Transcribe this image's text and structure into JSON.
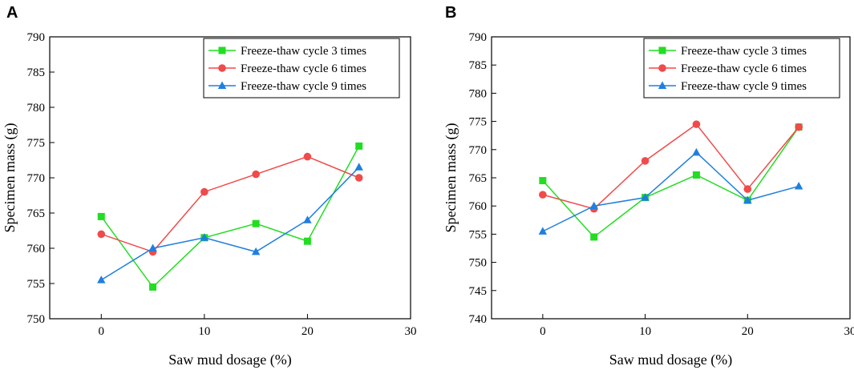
{
  "chart_data": [
    {
      "type": "line",
      "panel_label": "A",
      "xlabel": "Saw mud dosage (%)",
      "ylabel": "Specimen mass (g)",
      "xlim": [
        -5,
        30
      ],
      "ylim": [
        750,
        790
      ],
      "xticks": [
        0,
        10,
        20,
        30
      ],
      "yticks": [
        750,
        755,
        760,
        765,
        770,
        775,
        780,
        785,
        790
      ],
      "legend_position": "top-right",
      "x": [
        0,
        5,
        10,
        15,
        20,
        25
      ],
      "series": [
        {
          "name": "Freeze-thaw cycle 3 times",
          "color": "#22dd22",
          "marker": "square",
          "values": [
            764.5,
            754.5,
            761.5,
            763.5,
            761.0,
            774.5
          ]
        },
        {
          "name": "Freeze-thaw cycle 6 times",
          "color": "#f04a4a",
          "marker": "circle",
          "values": [
            762.0,
            759.5,
            768.0,
            770.5,
            773.0,
            770.0
          ]
        },
        {
          "name": "Freeze-thaw cycle 9 times",
          "color": "#1f7fdf",
          "marker": "triangle",
          "values": [
            755.5,
            760.0,
            761.5,
            759.5,
            764.0,
            771.5
          ]
        }
      ]
    },
    {
      "type": "line",
      "panel_label": "B",
      "xlabel": "Saw mud dosage (%)",
      "ylabel": "Specimen mass (g)",
      "xlim": [
        -5,
        30
      ],
      "ylim": [
        740,
        790
      ],
      "xticks": [
        0,
        10,
        20,
        30
      ],
      "yticks": [
        740,
        745,
        750,
        755,
        760,
        765,
        770,
        775,
        780,
        785,
        790
      ],
      "legend_position": "top-right",
      "x": [
        0,
        5,
        10,
        15,
        20,
        25
      ],
      "series": [
        {
          "name": "Freeze-thaw cycle 3 times",
          "color": "#22dd22",
          "marker": "square",
          "values": [
            764.5,
            754.5,
            761.5,
            765.5,
            761.0,
            774.0
          ]
        },
        {
          "name": "Freeze-thaw cycle 6 times",
          "color": "#f04a4a",
          "marker": "circle",
          "values": [
            762.0,
            759.5,
            768.0,
            774.5,
            763.0,
            774.0
          ]
        },
        {
          "name": "Freeze-thaw cycle 9 times",
          "color": "#1f7fdf",
          "marker": "triangle",
          "values": [
            755.5,
            760.0,
            761.5,
            769.5,
            761.0,
            763.5
          ]
        }
      ]
    }
  ]
}
